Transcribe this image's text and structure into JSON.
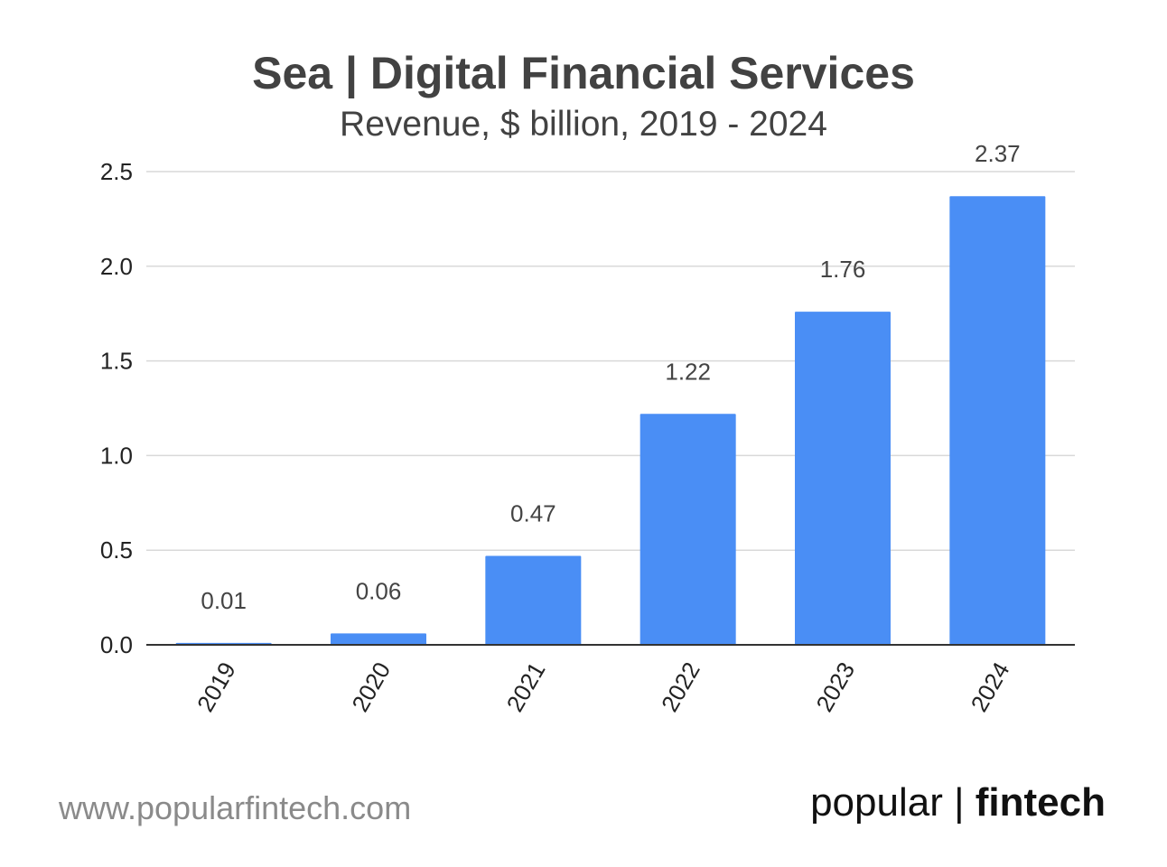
{
  "colors": {
    "bar": "#4a8ef5",
    "grid": "#d9d9d9",
    "axis": "#333333",
    "text": "#222222",
    "label": "#444444"
  },
  "chart_data": {
    "type": "bar",
    "title": "Sea | Digital Financial Services",
    "subtitle": "Revenue, $ billion, 2019 - 2024",
    "categories": [
      "2019",
      "2020",
      "2021",
      "2022",
      "2023",
      "2024"
    ],
    "values": [
      0.01,
      0.06,
      0.47,
      1.22,
      1.76,
      2.37
    ],
    "value_labels": [
      "0.01",
      "0.06",
      "0.47",
      "1.22",
      "1.76",
      "2.37"
    ],
    "yticks": [
      0.0,
      0.5,
      1.0,
      1.5,
      2.0,
      2.5
    ],
    "ytick_labels": [
      "0.0",
      "0.5",
      "1.0",
      "1.5",
      "2.0",
      "2.5"
    ],
    "ylim": [
      0,
      2.5
    ],
    "xlabel": "",
    "ylabel": "",
    "grid": true,
    "legend": "none"
  },
  "footer": {
    "url": "www.popularfintech.com",
    "brand_left": "popular",
    "brand_sep": "|",
    "brand_right": "fintech"
  }
}
